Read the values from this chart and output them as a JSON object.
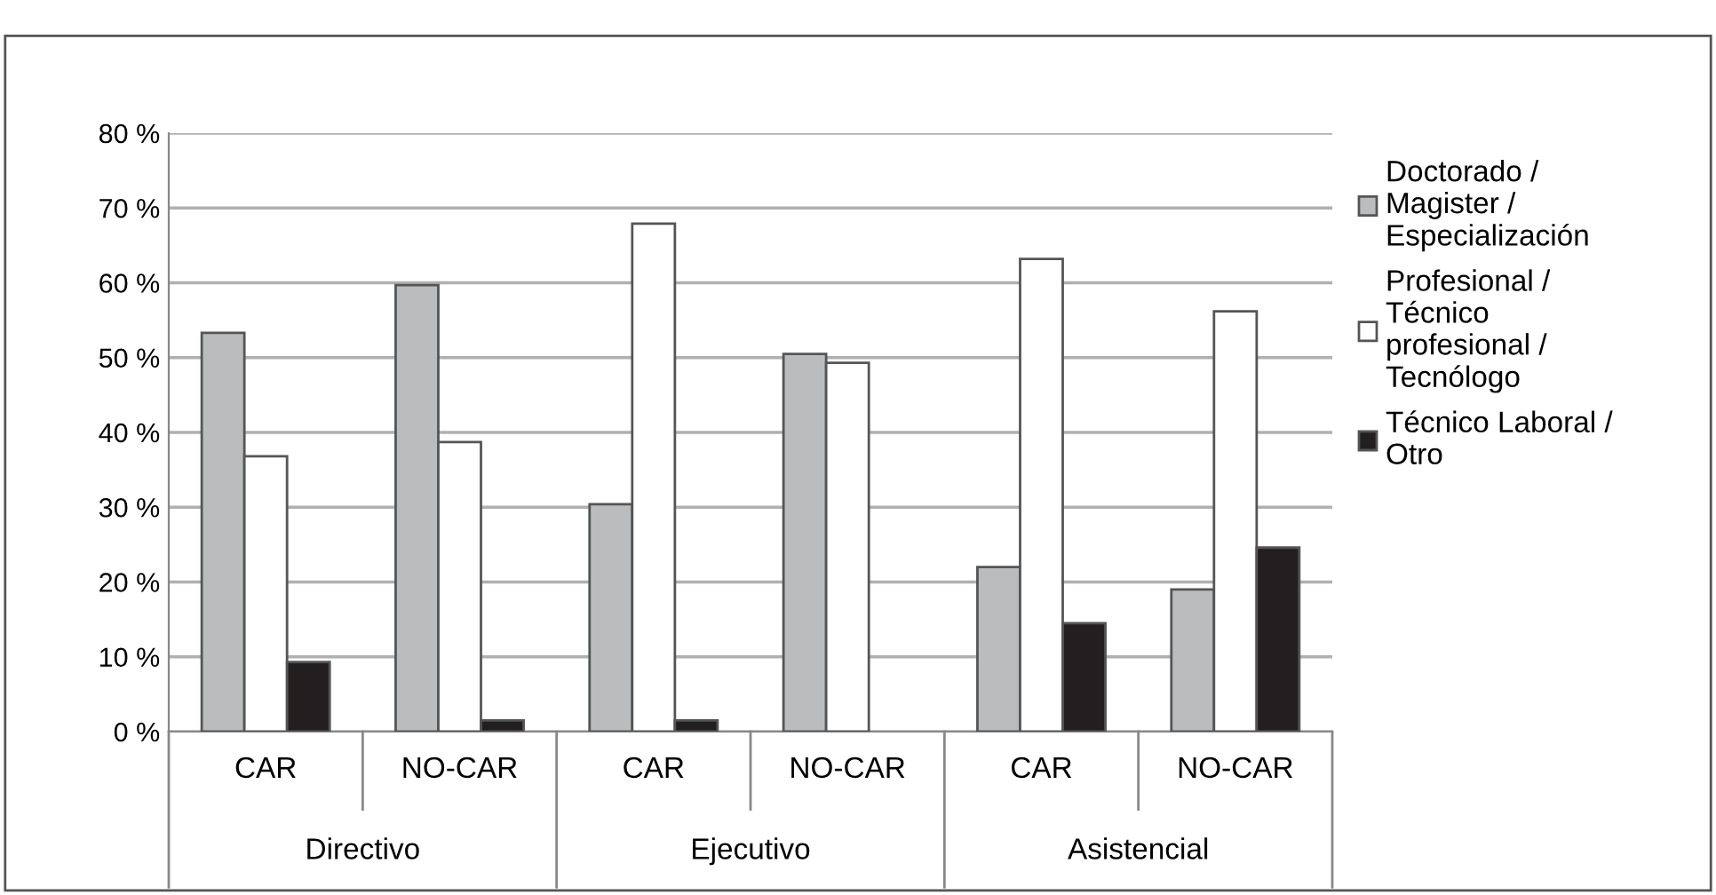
{
  "chart_data": {
    "type": "bar",
    "categories": [
      "CAR",
      "NO-CAR",
      "CAR",
      "NO-CAR",
      "CAR",
      "NO-CAR"
    ],
    "annotations": [
      "Directivo",
      "Ejecutivo",
      "Asistencial"
    ],
    "series": [
      {
        "name": "Doctorado /\nMagister /\nEspecialización",
        "color": "#bbbcbe",
        "values": [
          53.3,
          59.7,
          30.4,
          50.5,
          22,
          19
        ]
      },
      {
        "name": "Profesional /\nTécnico\nprofesional /\nTecnólogo",
        "color": "#ffffff",
        "values": [
          36.8,
          38.7,
          67.9,
          49.3,
          63.2,
          56.2
        ]
      },
      {
        "name": "Técnico Laboral /\nOtro",
        "color": "#231f20",
        "values": [
          9.3,
          1.5,
          1.5,
          null,
          14.5,
          24.6
        ]
      }
    ],
    "ylim": [
      0,
      80
    ],
    "yticks": [
      {
        "value": 0,
        "label": "0 %"
      },
      {
        "value": 10,
        "label": "10 %"
      },
      {
        "value": 20,
        "label": "20 %"
      },
      {
        "value": 30,
        "label": "30 %"
      },
      {
        "value": 40,
        "label": "40 %"
      },
      {
        "value": 50,
        "label": "50 %"
      },
      {
        "value": 60,
        "label": "60 %"
      },
      {
        "value": 70,
        "label": "70 %"
      },
      {
        "value": 80,
        "label": "80 %"
      }
    ],
    "grid": "y",
    "legend": "right"
  }
}
